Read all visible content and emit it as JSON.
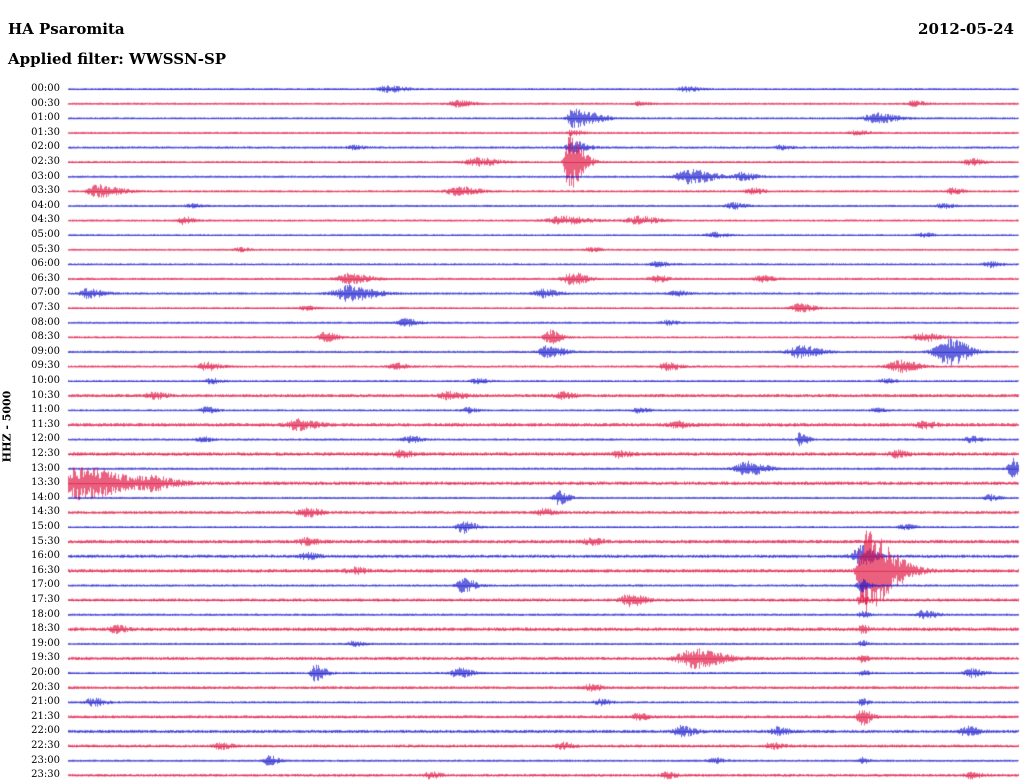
{
  "header": {
    "station": "HA Psaromita",
    "date": "2012-05-24",
    "filter": "Applied filter: WWSSN-SP"
  },
  "axis": {
    "channel_label": "HHZ - 5000"
  },
  "chart_data": {
    "type": "line",
    "subtype": "seismogram-helicorder",
    "title": "HA Psaromita helicorder record",
    "date": "2012-05-24",
    "filter": "WWSSN-SP",
    "channel": "HHZ",
    "gain_label": "HHZ - 5000",
    "minutes_per_row": 30,
    "first_row_time": "00:00",
    "last_row_time": "23:30",
    "grid": false,
    "legend": "none",
    "colors": {
      "blue": "#1717cd",
      "red": "#e01040"
    },
    "events_format": "[position_fraction_of_row, amplitude_px, rise_width_px, decay_width_px]",
    "rows": [
      {
        "time": "00:00",
        "color": "blue",
        "base": 1.0,
        "events": [
          [
            0.335,
            3,
            6,
            14
          ],
          [
            0.65,
            2.5,
            5,
            10
          ]
        ]
      },
      {
        "time": "00:30",
        "color": "red",
        "base": 1.0,
        "events": [
          [
            0.41,
            3,
            6,
            12
          ],
          [
            0.6,
            2,
            4,
            8
          ],
          [
            0.89,
            2.5,
            5,
            9
          ]
        ]
      },
      {
        "time": "01:00",
        "color": "blue",
        "base": 1.0,
        "events": [
          [
            0.53,
            9,
            3,
            20
          ],
          [
            0.85,
            5,
            8,
            16
          ]
        ]
      },
      {
        "time": "01:30",
        "color": "red",
        "base": 1.0,
        "events": [
          [
            0.53,
            3,
            3,
            8
          ],
          [
            0.83,
            2,
            5,
            9
          ]
        ]
      },
      {
        "time": "02:00",
        "color": "blue",
        "base": 1.1,
        "events": [
          [
            0.3,
            2,
            4,
            8
          ],
          [
            0.53,
            6,
            4,
            12
          ],
          [
            0.75,
            2,
            4,
            8
          ]
        ]
      },
      {
        "time": "02:30",
        "color": "red",
        "base": 1.1,
        "events": [
          [
            0.43,
            4,
            8,
            16
          ],
          [
            0.525,
            30,
            2,
            12
          ],
          [
            0.95,
            3,
            5,
            9
          ]
        ]
      },
      {
        "time": "03:00",
        "color": "blue",
        "base": 1.0,
        "events": [
          [
            0.655,
            7,
            10,
            18
          ],
          [
            0.71,
            4,
            6,
            10
          ]
        ]
      },
      {
        "time": "03:30",
        "color": "red",
        "base": 1.1,
        "events": [
          [
            0.03,
            6,
            6,
            18
          ],
          [
            0.41,
            4,
            8,
            16
          ],
          [
            0.72,
            3,
            5,
            9
          ],
          [
            0.93,
            3,
            4,
            8
          ]
        ]
      },
      {
        "time": "04:00",
        "color": "blue",
        "base": 1.0,
        "events": [
          [
            0.13,
            2,
            4,
            8
          ],
          [
            0.7,
            3,
            5,
            9
          ],
          [
            0.92,
            2.5,
            4,
            8
          ]
        ]
      },
      {
        "time": "04:30",
        "color": "red",
        "base": 1.0,
        "events": [
          [
            0.12,
            4,
            3,
            8
          ],
          [
            0.52,
            4,
            10,
            20
          ],
          [
            0.6,
            4,
            8,
            14
          ]
        ]
      },
      {
        "time": "05:00",
        "color": "blue",
        "base": 0.9,
        "events": [
          [
            0.68,
            2.5,
            5,
            9
          ],
          [
            0.9,
            2,
            4,
            8
          ]
        ]
      },
      {
        "time": "05:30",
        "color": "red",
        "base": 0.9,
        "events": [
          [
            0.18,
            2,
            4,
            8
          ],
          [
            0.55,
            2,
            4,
            8
          ]
        ]
      },
      {
        "time": "06:00",
        "color": "blue",
        "base": 1.0,
        "events": [
          [
            0.62,
            2.5,
            5,
            9
          ],
          [
            0.97,
            3,
            4,
            8
          ]
        ]
      },
      {
        "time": "06:30",
        "color": "red",
        "base": 1.1,
        "events": [
          [
            0.295,
            5,
            8,
            16
          ],
          [
            0.53,
            6,
            6,
            12
          ],
          [
            0.62,
            3,
            5,
            9
          ],
          [
            0.73,
            3,
            5,
            9
          ]
        ]
      },
      {
        "time": "07:00",
        "color": "blue",
        "base": 1.1,
        "events": [
          [
            0.02,
            5,
            5,
            12
          ],
          [
            0.295,
            8,
            10,
            20
          ],
          [
            0.5,
            4,
            6,
            12
          ],
          [
            0.64,
            2.5,
            4,
            8
          ]
        ]
      },
      {
        "time": "07:30",
        "color": "red",
        "base": 1.0,
        "events": [
          [
            0.25,
            2,
            4,
            8
          ],
          [
            0.77,
            4,
            6,
            12
          ]
        ]
      },
      {
        "time": "08:00",
        "color": "blue",
        "base": 1.0,
        "events": [
          [
            0.355,
            4,
            5,
            10
          ],
          [
            0.63,
            2,
            4,
            8
          ]
        ]
      },
      {
        "time": "08:30",
        "color": "red",
        "base": 1.0,
        "events": [
          [
            0.27,
            5,
            4,
            10
          ],
          [
            0.505,
            7,
            3,
            10
          ],
          [
            0.9,
            4,
            8,
            14
          ]
        ]
      },
      {
        "time": "09:00",
        "color": "blue",
        "base": 1.1,
        "events": [
          [
            0.505,
            6,
            6,
            12
          ],
          [
            0.77,
            6,
            8,
            16
          ],
          [
            0.928,
            14,
            10,
            14
          ]
        ]
      },
      {
        "time": "09:30",
        "color": "red",
        "base": 1.1,
        "events": [
          [
            0.145,
            4,
            5,
            10
          ],
          [
            0.345,
            3,
            5,
            9
          ],
          [
            0.63,
            4,
            5,
            10
          ],
          [
            0.875,
            6,
            8,
            14
          ]
        ]
      },
      {
        "time": "10:00",
        "color": "blue",
        "base": 1.0,
        "events": [
          [
            0.15,
            2.5,
            4,
            8
          ],
          [
            0.43,
            2.5,
            4,
            8
          ],
          [
            0.86,
            2,
            4,
            8
          ]
        ]
      },
      {
        "time": "10:30",
        "color": "red",
        "base": 1.6,
        "events": [
          [
            0.09,
            3,
            5,
            10
          ],
          [
            0.4,
            4,
            6,
            12
          ],
          [
            0.52,
            3,
            5,
            9
          ]
        ]
      },
      {
        "time": "11:00",
        "color": "blue",
        "base": 1.0,
        "events": [
          [
            0.145,
            3,
            4,
            8
          ],
          [
            0.42,
            2.5,
            4,
            8
          ],
          [
            0.6,
            2.5,
            4,
            8
          ],
          [
            0.85,
            2,
            4,
            8
          ]
        ]
      },
      {
        "time": "11:30",
        "color": "red",
        "base": 1.8,
        "events": [
          [
            0.24,
            5,
            6,
            14
          ],
          [
            0.64,
            3,
            5,
            9
          ],
          [
            0.9,
            3,
            5,
            9
          ]
        ]
      },
      {
        "time": "12:00",
        "color": "blue",
        "base": 1.1,
        "events": [
          [
            0.14,
            2.5,
            4,
            8
          ],
          [
            0.36,
            3,
            5,
            9
          ],
          [
            0.77,
            7,
            2,
            6
          ],
          [
            0.95,
            3,
            4,
            8
          ]
        ]
      },
      {
        "time": "12:30",
        "color": "red",
        "base": 1.8,
        "events": [
          [
            0.35,
            3,
            5,
            9
          ],
          [
            0.58,
            3,
            5,
            9
          ],
          [
            0.87,
            3,
            5,
            9
          ]
        ]
      },
      {
        "time": "13:00",
        "color": "blue",
        "base": 1.1,
        "events": [
          [
            0.715,
            7,
            8,
            14
          ],
          [
            0.995,
            10,
            4,
            4
          ]
        ]
      },
      {
        "time": "13:30",
        "color": "red",
        "base": 1.8,
        "events": [
          [
            0.005,
            16,
            4,
            40
          ],
          [
            0.085,
            5,
            8,
            20
          ]
        ]
      },
      {
        "time": "14:00",
        "color": "blue",
        "base": 1.0,
        "events": [
          [
            0.515,
            7,
            3,
            8
          ],
          [
            0.97,
            3,
            4,
            8
          ]
        ]
      },
      {
        "time": "14:30",
        "color": "red",
        "base": 1.5,
        "events": [
          [
            0.25,
            4,
            6,
            12
          ],
          [
            0.5,
            3,
            5,
            9
          ]
        ]
      },
      {
        "time": "15:00",
        "color": "blue",
        "base": 1.0,
        "events": [
          [
            0.415,
            6,
            4,
            10
          ],
          [
            0.88,
            2.5,
            4,
            8
          ]
        ]
      },
      {
        "time": "15:30",
        "color": "red",
        "base": 1.8,
        "events": [
          [
            0.25,
            3,
            5,
            9
          ],
          [
            0.55,
            3,
            5,
            9
          ]
        ]
      },
      {
        "time": "16:00",
        "color": "blue",
        "base": 1.6,
        "events": [
          [
            0.25,
            3,
            5,
            9
          ],
          [
            0.835,
            10,
            6,
            10
          ]
        ]
      },
      {
        "time": "16:30",
        "color": "red",
        "base": 1.8,
        "events": [
          [
            0.835,
            42,
            3,
            25
          ],
          [
            0.3,
            3,
            5,
            9
          ]
        ]
      },
      {
        "time": "17:00",
        "color": "blue",
        "base": 1.1,
        "events": [
          [
            0.415,
            7,
            4,
            10
          ],
          [
            0.835,
            6,
            3,
            6
          ]
        ]
      },
      {
        "time": "17:30",
        "color": "red",
        "base": 1.6,
        "events": [
          [
            0.59,
            6,
            5,
            12
          ],
          [
            0.835,
            5,
            3,
            6
          ]
        ]
      },
      {
        "time": "18:00",
        "color": "blue",
        "base": 1.1,
        "events": [
          [
            0.835,
            4,
            2,
            5
          ],
          [
            0.9,
            4,
            5,
            10
          ]
        ]
      },
      {
        "time": "18:30",
        "color": "red",
        "base": 1.8,
        "events": [
          [
            0.05,
            3,
            5,
            9
          ],
          [
            0.835,
            4,
            2,
            5
          ]
        ]
      },
      {
        "time": "19:00",
        "color": "blue",
        "base": 1.0,
        "events": [
          [
            0.3,
            2.5,
            4,
            8
          ],
          [
            0.835,
            3,
            2,
            5
          ]
        ]
      },
      {
        "time": "19:30",
        "color": "red",
        "base": 1.6,
        "events": [
          [
            0.66,
            9,
            12,
            22
          ],
          [
            0.835,
            3,
            2,
            5
          ]
        ]
      },
      {
        "time": "20:00",
        "color": "blue",
        "base": 1.1,
        "events": [
          [
            0.26,
            9,
            3,
            8
          ],
          [
            0.41,
            5,
            5,
            10
          ],
          [
            0.835,
            3,
            2,
            5
          ],
          [
            0.95,
            4,
            5,
            9
          ]
        ]
      },
      {
        "time": "20:30",
        "color": "red",
        "base": 1.4,
        "events": [
          [
            0.55,
            3,
            5,
            9
          ]
        ]
      },
      {
        "time": "21:00",
        "color": "blue",
        "base": 1.1,
        "events": [
          [
            0.025,
            4,
            5,
            10
          ],
          [
            0.56,
            3,
            4,
            8
          ],
          [
            0.835,
            4,
            2,
            5
          ]
        ]
      },
      {
        "time": "21:30",
        "color": "red",
        "base": 1.5,
        "events": [
          [
            0.6,
            3,
            4,
            8
          ],
          [
            0.835,
            8,
            3,
            7
          ]
        ]
      },
      {
        "time": "22:00",
        "color": "blue",
        "base": 1.6,
        "events": [
          [
            0.645,
            5,
            5,
            10
          ],
          [
            0.745,
            4,
            4,
            9
          ],
          [
            0.945,
            5,
            4,
            9
          ]
        ]
      },
      {
        "time": "22:30",
        "color": "red",
        "base": 1.5,
        "events": [
          [
            0.16,
            3,
            4,
            8
          ],
          [
            0.52,
            3,
            4,
            8
          ],
          [
            0.74,
            3,
            4,
            8
          ]
        ]
      },
      {
        "time": "23:00",
        "color": "blue",
        "base": 1.0,
        "events": [
          [
            0.21,
            5,
            3,
            8
          ],
          [
            0.68,
            2.5,
            4,
            8
          ],
          [
            0.835,
            3,
            2,
            5
          ]
        ]
      },
      {
        "time": "23:30",
        "color": "red",
        "base": 1.4,
        "events": [
          [
            0.38,
            3,
            4,
            8
          ],
          [
            0.63,
            3,
            4,
            8
          ],
          [
            0.95,
            3,
            4,
            8
          ]
        ]
      }
    ]
  }
}
